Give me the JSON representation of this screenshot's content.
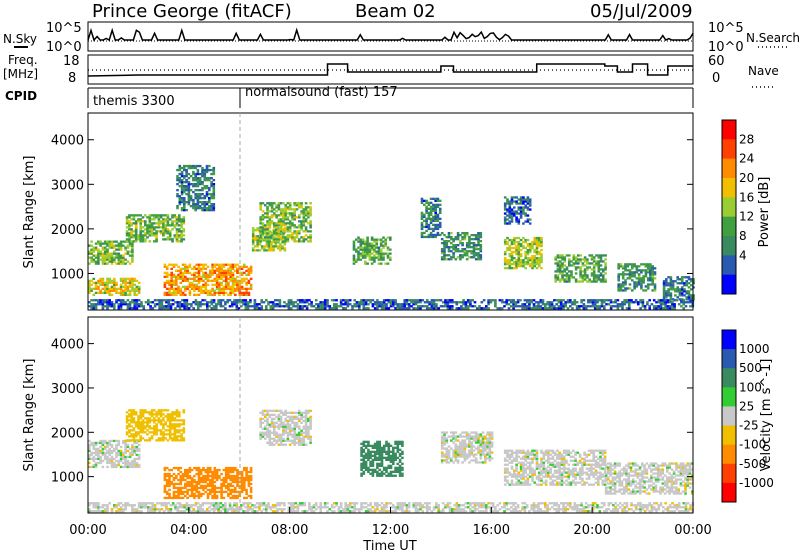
{
  "header": {
    "station": "Prince George (fitACF)",
    "beam": "Beam 02",
    "date": "05/Jul/2009"
  },
  "summary_panels": {
    "nsky_label": "N.Sky",
    "nsearch_label": "N.Search",
    "noise_ticks_left": [
      "10^5",
      "10^0"
    ],
    "noise_ticks_right": [
      "10^5",
      "10^0"
    ],
    "freq_label": "Freq.",
    "freq_unit": "[MHz]",
    "freq_ticks": [
      "18",
      "8"
    ],
    "nave_label": "Nave",
    "nave_ticks": [
      "60",
      "0"
    ],
    "cpid_label": "CPID",
    "cpid_entries": [
      {
        "name": "themis 3300",
        "start_hour": 0
      },
      {
        "name": "normalsound (fast) 157",
        "start_hour": 6.0
      }
    ]
  },
  "colors": {
    "power_scale": [
      "#0000ff",
      "#2a5ab0",
      "#3a8a60",
      "#40a040",
      "#9acd32",
      "#f0c000",
      "#ff8c00",
      "#ff4000",
      "#ff0000"
    ],
    "velocity_scale": [
      "#0000ff",
      "#2a5ab0",
      "#3a8a60",
      "#32cd32",
      "#c8c8c8",
      "#f0c000",
      "#ff8c00",
      "#ff4000",
      "#ff0000"
    ]
  },
  "chart_data": [
    {
      "type": "heatmap",
      "name": "power",
      "xlabel": "",
      "ylabel": "Slant Range [km]",
      "xlim": [
        0,
        24
      ],
      "ylim": [
        180,
        4600
      ],
      "yticks": [
        1000,
        2000,
        3000,
        4000
      ],
      "colorbar_label": "Power [dB]",
      "colorbar_ticks": [
        "28",
        "24",
        "20",
        "16",
        "12",
        "8",
        "4"
      ],
      "colorbar_range": [
        0,
        32
      ],
      "echo_regions": [
        {
          "t0": 0.0,
          "t1": 24.0,
          "r0": 200,
          "r1": 400,
          "level": 6
        },
        {
          "t0": 0.0,
          "t1": 1.8,
          "r0": 1200,
          "r1": 1700,
          "level": 14
        },
        {
          "t0": 1.5,
          "t1": 3.8,
          "r0": 1700,
          "r1": 2300,
          "level": 14
        },
        {
          "t0": 0.0,
          "t1": 2.0,
          "r0": 500,
          "r1": 900,
          "level": 18
        },
        {
          "t0": 3.0,
          "t1": 6.5,
          "r0": 500,
          "r1": 1200,
          "level": 22
        },
        {
          "t0": 6.5,
          "t1": 7.8,
          "r0": 1500,
          "r1": 2000,
          "level": 16
        },
        {
          "t0": 6.8,
          "t1": 8.8,
          "r0": 1700,
          "r1": 2600,
          "level": 14
        },
        {
          "t0": 3.5,
          "t1": 5.0,
          "r0": 2400,
          "r1": 3400,
          "level": 8
        },
        {
          "t0": 10.5,
          "t1": 12.0,
          "r0": 1200,
          "r1": 1800,
          "level": 12
        },
        {
          "t0": 14.0,
          "t1": 15.6,
          "r0": 1300,
          "r1": 1900,
          "level": 10
        },
        {
          "t0": 16.5,
          "t1": 18.0,
          "r0": 1100,
          "r1": 1800,
          "level": 16
        },
        {
          "t0": 18.5,
          "t1": 20.5,
          "r0": 800,
          "r1": 1400,
          "level": 12
        },
        {
          "t0": 21.0,
          "t1": 22.5,
          "r0": 600,
          "r1": 1200,
          "level": 10
        },
        {
          "t0": 22.8,
          "t1": 24.0,
          "r0": 400,
          "r1": 900,
          "level": 8
        },
        {
          "t0": 13.2,
          "t1": 14.0,
          "r0": 1800,
          "r1": 2700,
          "level": 8
        },
        {
          "t0": 16.5,
          "t1": 17.5,
          "r0": 2100,
          "r1": 2700,
          "level": 6
        }
      ]
    },
    {
      "type": "heatmap",
      "name": "velocity",
      "xlabel": "Time UT",
      "ylabel": "Slant Range [km]",
      "xlim": [
        0,
        24
      ],
      "ylim": [
        180,
        4600
      ],
      "xticks": [
        "00:00",
        "04:00",
        "08:00",
        "12:00",
        "16:00",
        "20:00",
        "00:00"
      ],
      "yticks": [
        1000,
        2000,
        3000,
        4000
      ],
      "colorbar_label": "Velocity [m s^-1]",
      "colorbar_ticks": [
        "1000",
        "500",
        "100",
        "25",
        "-25",
        "-100",
        "-500",
        "-1000"
      ],
      "echo_regions": [
        {
          "t0": 0.0,
          "t1": 24.0,
          "r0": 200,
          "r1": 400,
          "velocity": 0
        },
        {
          "t0": 0.0,
          "t1": 2.0,
          "r0": 1200,
          "r1": 1800,
          "velocity": 0
        },
        {
          "t0": 1.5,
          "t1": 3.8,
          "r0": 1800,
          "r1": 2500,
          "velocity": -60
        },
        {
          "t0": 3.0,
          "t1": 6.5,
          "r0": 500,
          "r1": 1200,
          "velocity": -300
        },
        {
          "t0": 6.8,
          "t1": 8.8,
          "r0": 1700,
          "r1": 2500,
          "velocity": 0
        },
        {
          "t0": 10.8,
          "t1": 12.5,
          "r0": 1000,
          "r1": 1800,
          "velocity": 150
        },
        {
          "t0": 14.0,
          "t1": 16.0,
          "r0": 1300,
          "r1": 2000,
          "velocity": 0
        },
        {
          "t0": 16.5,
          "t1": 20.5,
          "r0": 800,
          "r1": 1600,
          "velocity": 0
        },
        {
          "t0": 20.5,
          "t1": 24.0,
          "r0": 600,
          "r1": 1300,
          "velocity": 0
        }
      ]
    }
  ]
}
